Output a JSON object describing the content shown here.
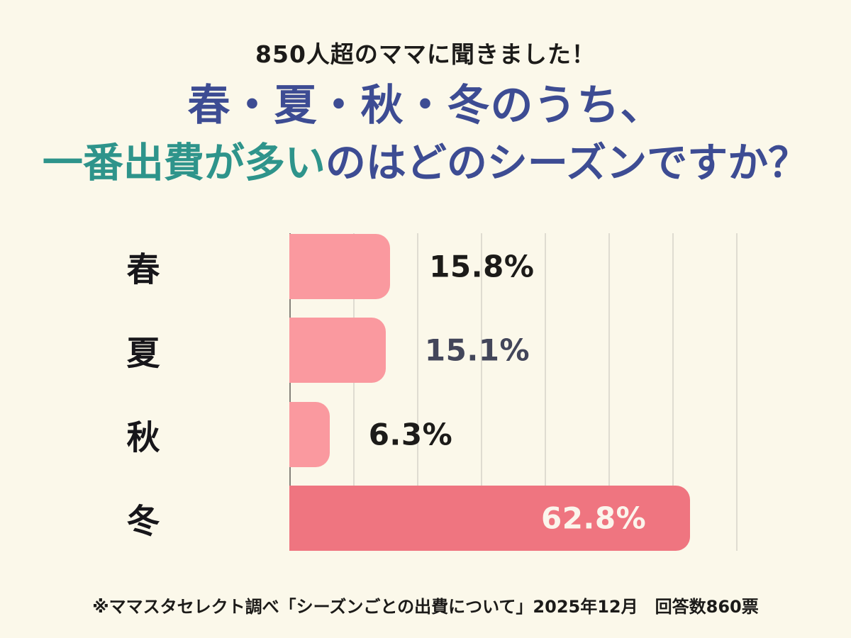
{
  "header": {
    "supertitle": "850人超のママに聞きました！",
    "title_line1": "春・夏・秋・冬のうち、",
    "title_line2_highlight": "一番出費が多い",
    "title_line2_rest": "のはどのシーズンですか？"
  },
  "chart_data": {
    "type": "bar",
    "orientation": "horizontal",
    "title": "春・夏・秋・冬のうち、一番出費が多いのはどのシーズンですか？",
    "subtitle": "850人超のママに聞きました！",
    "categories": [
      "春",
      "夏",
      "秋",
      "冬"
    ],
    "values": [
      15.8,
      15.1,
      6.3,
      62.8
    ],
    "value_labels": [
      "15.8%",
      "15.1%",
      "6.3%",
      "62.8%"
    ],
    "xlim": [
      0,
      70
    ],
    "grid": true,
    "gridline_step_percent": 10,
    "highlighted_category": "冬",
    "bar_colors": [
      "#FA999F",
      "#FA999F",
      "#FA999F",
      "#EF7580"
    ],
    "value_label_colors": [
      "#1C1B19",
      "#43465A",
      "#1C1B19",
      "#FBF5EC"
    ],
    "value_label_placement": [
      "outside",
      "outside",
      "outside",
      "inside"
    ],
    "legend": "none"
  },
  "footer": {
    "source_note": "※ママスタセレクト調べ「シーズンごとの出費について」2025年12月　回答数860票"
  },
  "colors": {
    "background": "#FBF8EA",
    "title_navy": "#3D4C93",
    "title_teal": "#2E948B",
    "bar_pink": "#FA999F",
    "bar_highlight": "#EF7580",
    "grid_line": "#DFDCD1",
    "axis_line": "#85827A",
    "text_black": "#1C1B19"
  }
}
